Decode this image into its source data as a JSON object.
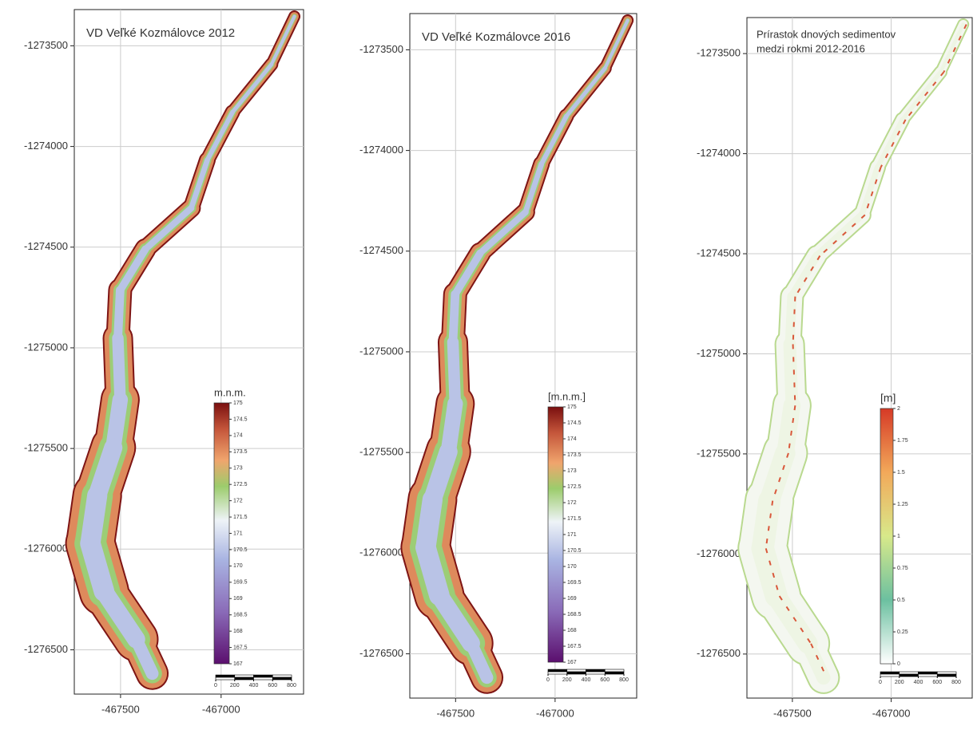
{
  "panels": [
    {
      "title": [
        "VD Veľké Kozmálovce 2012"
      ],
      "xlim": [
        -467730,
        -466590
      ],
      "ylim": [
        -1276720,
        -1273320
      ],
      "xticks": [
        -467500,
        -467000
      ],
      "yticks": [
        -1273500,
        -1274000,
        -1274500,
        -1275000,
        -1275500,
        -1276000,
        -1276500
      ],
      "legend": {
        "label": "m.n.m.",
        "lim": [
          167,
          175
        ],
        "ticks": [
          167,
          167.5,
          168,
          168.5,
          169,
          169.5,
          170,
          170.5,
          171,
          171.5,
          172,
          172.5,
          173,
          173.5,
          174,
          174.5,
          175
        ]
      },
      "scalebar": [
        0,
        200,
        400,
        600,
        800
      ]
    },
    {
      "title": [
        "VD Veľké Kozmálovce 2016"
      ],
      "xlim": [
        -467730,
        -466590
      ],
      "ylim": [
        -1276720,
        -1273320
      ],
      "xticks": [
        -467500,
        -467000
      ],
      "yticks": [
        -1273500,
        -1274000,
        -1274500,
        -1275000,
        -1275500,
        -1276000,
        -1276500
      ],
      "legend": {
        "label": "[m.n.m.]",
        "lim": [
          167,
          175
        ],
        "ticks": [
          167,
          167.5,
          168,
          168.5,
          169,
          169.5,
          170,
          170.5,
          171,
          171.5,
          172,
          172.5,
          173,
          173.5,
          174,
          174.5,
          175
        ]
      },
      "scalebar": [
        0,
        200,
        400,
        600,
        800
      ]
    },
    {
      "title": [
        "Prírastok dnových sedimentov",
        "medzi rokmi 2012-2016"
      ],
      "xlim": [
        -467730,
        -466590
      ],
      "ylim": [
        -1276720,
        -1273320
      ],
      "xticks": [
        -467500,
        -467000
      ],
      "yticks": [
        -1273500,
        -1274000,
        -1274500,
        -1275000,
        -1275500,
        -1276000,
        -1276500
      ],
      "legend": {
        "label": "[m]",
        "lim": [
          0,
          2
        ],
        "ticks": [
          0,
          0.25,
          0.5,
          0.75,
          1,
          1.25,
          1.5,
          1.75,
          2
        ]
      },
      "scalebar": [
        0,
        200,
        400,
        600,
        800
      ]
    }
  ]
}
